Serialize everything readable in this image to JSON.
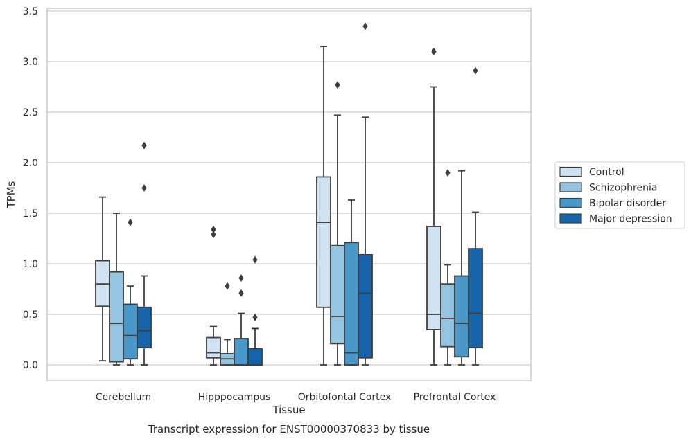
{
  "chart_data": {
    "type": "box",
    "title": "",
    "caption": "Transcript expression for ENST00000370833 by tissue",
    "xlabel": "Tissue",
    "ylabel": "TPMs",
    "ylim": [
      -0.16,
      3.53
    ],
    "yticks": [
      "0.0",
      "0.5",
      "1.0",
      "1.5",
      "2.0",
      "2.5",
      "3.0",
      "3.5"
    ],
    "grid": "horizontal",
    "legend_position": "right",
    "categories": [
      "Cerebellum",
      "Hipppocampus",
      "Orbitofontal Cortex",
      "Prefrontal Cortex"
    ],
    "series": [
      {
        "name": "Control",
        "color": "#d0e1f2",
        "boxes": [
          {
            "whisker_low": 0.04,
            "q1": 0.58,
            "median": 0.8,
            "q3": 1.03,
            "whisker_high": 1.66,
            "outliers": []
          },
          {
            "whisker_low": 0.0,
            "q1": 0.07,
            "median": 0.12,
            "q3": 0.27,
            "whisker_high": 0.38,
            "outliers": [
              1.29,
              1.34
            ]
          },
          {
            "whisker_low": 0.0,
            "q1": 0.57,
            "median": 1.41,
            "q3": 1.86,
            "whisker_high": 3.15,
            "outliers": []
          },
          {
            "whisker_low": 0.0,
            "q1": 0.35,
            "median": 0.5,
            "q3": 1.37,
            "whisker_high": 2.75,
            "outliers": [
              3.1
            ]
          }
        ]
      },
      {
        "name": "Schizophrenia",
        "color": "#94c4df",
        "boxes": [
          {
            "whisker_low": 0.0,
            "q1": 0.03,
            "median": 0.41,
            "q3": 0.92,
            "whisker_high": 1.5,
            "outliers": []
          },
          {
            "whisker_low": 0.0,
            "q1": 0.0,
            "median": 0.06,
            "q3": 0.11,
            "whisker_high": 0.25,
            "outliers": [
              0.78
            ]
          },
          {
            "whisker_low": 0.0,
            "q1": 0.21,
            "median": 0.48,
            "q3": 1.18,
            "whisker_high": 2.47,
            "outliers": [
              2.77
            ]
          },
          {
            "whisker_low": 0.0,
            "q1": 0.18,
            "median": 0.46,
            "q3": 0.8,
            "whisker_high": 0.99,
            "outliers": [
              1.9
            ]
          }
        ]
      },
      {
        "name": "Bipolar disorder",
        "color": "#4a98c9",
        "boxes": [
          {
            "whisker_low": 0.0,
            "q1": 0.06,
            "median": 0.29,
            "q3": 0.6,
            "whisker_high": 0.78,
            "outliers": [
              1.41
            ]
          },
          {
            "whisker_low": 0.0,
            "q1": 0.0,
            "median": 0.0,
            "q3": 0.26,
            "whisker_high": 0.51,
            "outliers": [
              0.71,
              0.86
            ]
          },
          {
            "whisker_low": 0.0,
            "q1": 0.0,
            "median": 0.12,
            "q3": 1.21,
            "whisker_high": 1.63,
            "outliers": []
          },
          {
            "whisker_low": 0.0,
            "q1": 0.08,
            "median": 0.41,
            "q3": 0.88,
            "whisker_high": 1.92,
            "outliers": []
          }
        ]
      },
      {
        "name": "Major depression",
        "color": "#1764ab",
        "boxes": [
          {
            "whisker_low": 0.0,
            "q1": 0.17,
            "median": 0.34,
            "q3": 0.57,
            "whisker_high": 0.88,
            "outliers": [
              1.75,
              2.17
            ]
          },
          {
            "whisker_low": 0.0,
            "q1": 0.0,
            "median": 0.0,
            "q3": 0.16,
            "whisker_high": 0.36,
            "outliers": [
              0.47,
              1.04
            ]
          },
          {
            "whisker_low": 0.0,
            "q1": 0.07,
            "median": 0.71,
            "q3": 1.09,
            "whisker_high": 2.45,
            "outliers": [
              3.35
            ]
          },
          {
            "whisker_low": 0.0,
            "q1": 0.17,
            "median": 0.51,
            "q3": 1.15,
            "whisker_high": 1.51,
            "outliers": [
              2.91
            ]
          }
        ]
      }
    ]
  }
}
